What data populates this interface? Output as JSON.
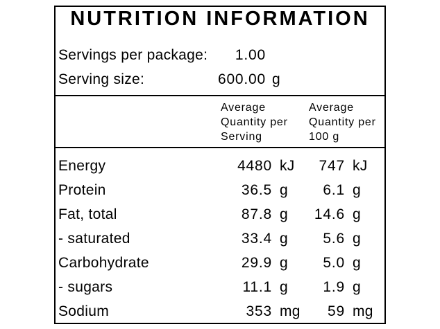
{
  "label": {
    "title": "NUTRITION INFORMATION",
    "servings_per_package": {
      "label": "Servings per package:",
      "value": "1.00",
      "unit": ""
    },
    "serving_size": {
      "label": "Serving size:",
      "value": "600.00",
      "unit": "g"
    },
    "columns": [
      {
        "lines": [
          "Average",
          "Quantity per",
          "Serving"
        ]
      },
      {
        "lines": [
          "Average",
          "Quantity per",
          "100 g"
        ]
      }
    ],
    "rows": [
      {
        "name": "Energy",
        "per_serving": "4480",
        "per_serving_unit": "kJ",
        "per_100g": "747",
        "per_100g_unit": "kJ"
      },
      {
        "name": "Protein",
        "per_serving": "36.5",
        "per_serving_unit": "g",
        "per_100g": "6.1",
        "per_100g_unit": "g"
      },
      {
        "name": "Fat, total",
        "per_serving": "87.8",
        "per_serving_unit": "g",
        "per_100g": "14.6",
        "per_100g_unit": "g"
      },
      {
        "name": "- saturated",
        "per_serving": "33.4",
        "per_serving_unit": "g",
        "per_100g": "5.6",
        "per_100g_unit": "g"
      },
      {
        "name": "Carbohydrate",
        "per_serving": "29.9",
        "per_serving_unit": "g",
        "per_100g": "5.0",
        "per_100g_unit": "g"
      },
      {
        "name": "- sugars",
        "per_serving": "11.1",
        "per_serving_unit": "g",
        "per_100g": "1.9",
        "per_100g_unit": "g"
      },
      {
        "name": "Sodium",
        "per_serving": "353",
        "per_serving_unit": "mg",
        "per_100g": "59",
        "per_100g_unit": "mg"
      }
    ]
  },
  "colors": {
    "background": "#ffffff",
    "text": "#000000",
    "border": "#000000"
  }
}
